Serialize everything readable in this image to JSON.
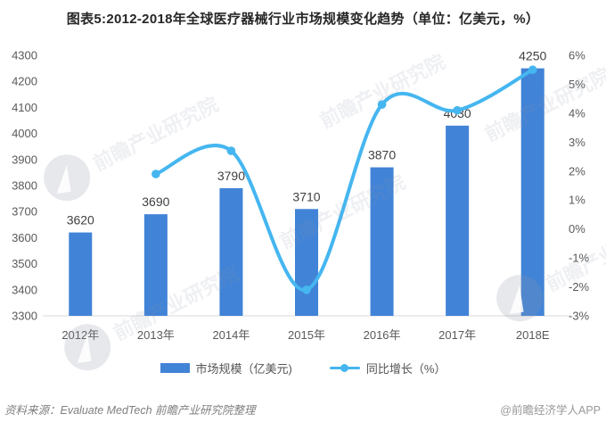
{
  "title": "图表5:2012-2018年全球医疗器械行业市场规模变化趋势（单位：亿美元，%）",
  "chart_data": {
    "type": "bar",
    "title": "图表5:2012-2018年全球医疗器械行业市场规模变化趋势（单位：亿美元，%）",
    "categories": [
      "2012年",
      "2013年",
      "2014年",
      "2015年",
      "2016年",
      "2017年",
      "2018E"
    ],
    "series": [
      {
        "name": "市场规模（亿美元)",
        "type": "bar",
        "axis": "left",
        "values": [
          3620,
          3690,
          3790,
          3710,
          3870,
          4030,
          4250
        ],
        "data_labels": [
          "3620",
          "3690",
          "3790",
          "3710",
          "3870",
          "4030",
          "4250"
        ],
        "color": "#4183d7"
      },
      {
        "name": "同比增长（%）",
        "type": "line",
        "axis": "right",
        "values": [
          null,
          1.9,
          2.7,
          -2.1,
          4.3,
          4.1,
          5.5
        ],
        "color": "#45b6f0"
      }
    ],
    "left_axis": {
      "min": 3300,
      "max": 4300,
      "step": 100,
      "ticks": [
        "4300",
        "4200",
        "4100",
        "4000",
        "3900",
        "3800",
        "3700",
        "3600",
        "3500",
        "3400",
        "3300"
      ]
    },
    "right_axis": {
      "min": -3,
      "max": 6,
      "step": 1,
      "suffix": "%",
      "ticks": [
        "6%",
        "5%",
        "4%",
        "3%",
        "2%",
        "1%",
        "0%",
        "-1%",
        "-2%",
        "-3%"
      ]
    },
    "grid": false,
    "legend_position": "bottom"
  },
  "legend": {
    "items": [
      {
        "label": "市场规模（亿美元)",
        "marker": "bar-swatch"
      },
      {
        "label": "同比增长（%）",
        "marker": "line-swatch"
      }
    ]
  },
  "footer": {
    "source": "资料来源：Evaluate MedTech 前瞻产业研究院整理",
    "credit": "@前瞻经济学人APP"
  },
  "watermark": {
    "text": "前瞻产业研究院"
  },
  "colors": {
    "bar": "#4183d7",
    "line": "#45b6f0",
    "title_text": "#262626",
    "axis_text": "#595959",
    "data_label_text": "#404040",
    "baseline": "#d9d9d9",
    "watermark": "#8c98a8",
    "background": "#ffffff"
  }
}
